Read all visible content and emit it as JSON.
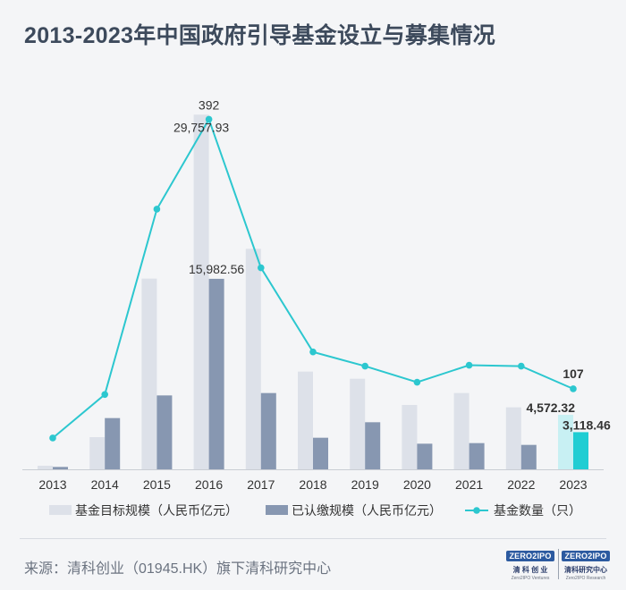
{
  "title": "2013-2023年中国政府引导基金设立与募集情况",
  "source": "来源：清科创业（01945.HK）旗下清科研究中心",
  "logos": [
    {
      "mark": "ZERO2IPO",
      "cn": "清 科 创 业",
      "en": "Zero2IPO Ventures"
    },
    {
      "mark": "ZERO2IPO",
      "cn": "清科研究中心",
      "en": "Zero2IPO Research"
    }
  ],
  "colors": {
    "target_bar": "#dde1e9",
    "raised_bar": "#8797b1",
    "line": "#2cc7cf",
    "highlight_target": "#c8f0f3",
    "highlight_raised": "#20cdd3",
    "axis": "#c9cdd4",
    "text": "#333333"
  },
  "chart_data": {
    "type": "bar+line",
    "categories": [
      "2013",
      "2014",
      "2015",
      "2016",
      "2017",
      "2018",
      "2019",
      "2020",
      "2021",
      "2022",
      "2023"
    ],
    "series": [
      {
        "name": "基金目标规模（人民币亿元）",
        "type": "bar",
        "values": [
          300,
          2700,
          16000,
          29757.93,
          18500,
          8200,
          7600,
          5400,
          6400,
          5200,
          4572.32
        ]
      },
      {
        "name": "已认缴规模（人民币亿元）",
        "type": "bar",
        "values": [
          200,
          4300,
          6200,
          15982.56,
          6400,
          2650,
          3950,
          2150,
          2200,
          2050,
          3118.46
        ]
      },
      {
        "name": "基金数量（只）",
        "type": "line",
        "values": [
          55,
          101,
          297,
          392,
          235,
          146,
          131,
          114,
          132,
          131,
          107
        ]
      }
    ],
    "data_labels": [
      {
        "series": 2,
        "index": 3,
        "text": "392"
      },
      {
        "series": 0,
        "index": 3,
        "text": "29,757.93"
      },
      {
        "series": 1,
        "index": 3,
        "text": "15,982.56"
      },
      {
        "series": 2,
        "index": 10,
        "text": "107"
      },
      {
        "series": 0,
        "index": 10,
        "text": "4,572.32"
      },
      {
        "series": 1,
        "index": 10,
        "text": "3,118.46"
      }
    ],
    "highlight_index": 10,
    "bar_ylim": [
      0,
      30000
    ],
    "line_ylim": [
      20,
      400
    ],
    "legend_position": "bottom",
    "grid": false
  }
}
